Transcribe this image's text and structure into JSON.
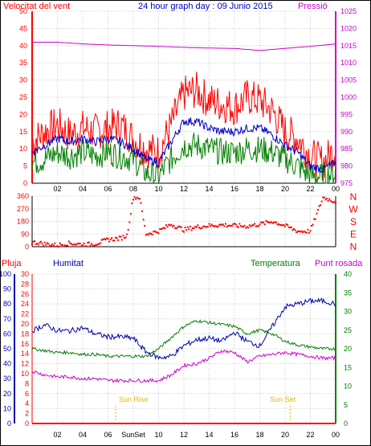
{
  "colors": {
    "wind_avg": "#0000cc",
    "wind_gust": "#ff0000",
    "wind_low": "#008000",
    "pressure": "#cc00cc",
    "direction": "#ff0000",
    "humidity": "#0000aa",
    "temperature": "#008000",
    "dewpoint": "#cc00cc",
    "rain": "#ff0000",
    "sun": "#ffcc00"
  },
  "chart_data": [
    {
      "type": "line",
      "title": "24 hour graph day : 09 Junio 2015",
      "left_label": "Velocitat del vent",
      "right_label": "Pressió",
      "x_ticks": [
        "02",
        "04",
        "06",
        "08",
        "10",
        "12",
        "14",
        "16",
        "18",
        "20",
        "22",
        "00"
      ],
      "y_left": {
        "ticks": [
          "0",
          "5",
          "10",
          "15",
          "20",
          "25",
          "30",
          "35",
          "40",
          "45",
          "50"
        ],
        "range": [
          0,
          50
        ]
      },
      "y_right": {
        "ticks": [
          "975",
          "980",
          "985",
          "990",
          "995",
          "1000",
          "1005",
          "1010",
          "1015",
          "1020",
          "1025"
        ],
        "range": [
          975,
          1025
        ]
      },
      "series": [
        {
          "name": "gust",
          "x": [
            0,
            1,
            2,
            3,
            4,
            5,
            6,
            7,
            8,
            9,
            10,
            11,
            12,
            13,
            14,
            15,
            16,
            17,
            18,
            19,
            20,
            21,
            22,
            23,
            24
          ],
          "values": [
            12,
            15,
            17,
            14,
            16,
            15,
            16,
            17,
            13,
            10,
            9,
            17,
            26,
            27,
            24,
            23,
            22,
            25,
            24,
            21,
            15,
            13,
            8,
            6,
            10
          ]
        },
        {
          "name": "average",
          "x": [
            0,
            1,
            2,
            3,
            4,
            5,
            6,
            7,
            8,
            9,
            10,
            11,
            12,
            13,
            14,
            15,
            16,
            17,
            18,
            19,
            20,
            21,
            22,
            23,
            24
          ],
          "values": [
            9,
            11,
            13,
            12,
            13,
            12,
            13,
            12,
            10,
            7,
            6,
            12,
            18,
            18,
            16,
            15,
            15,
            16,
            16,
            14,
            11,
            9,
            5,
            4,
            6
          ]
        },
        {
          "name": "low",
          "x": [
            0,
            1,
            2,
            3,
            4,
            5,
            6,
            7,
            8,
            9,
            10,
            11,
            12,
            13,
            14,
            15,
            16,
            17,
            18,
            19,
            20,
            21,
            22,
            23,
            24
          ],
          "values": [
            6,
            7,
            9,
            8,
            9,
            8,
            9,
            8,
            7,
            3,
            2,
            7,
            11,
            11,
            10,
            9,
            9,
            10,
            10,
            9,
            7,
            5,
            2,
            2,
            3
          ]
        },
        {
          "name": "pressure",
          "x": [
            0,
            2,
            4,
            6,
            8,
            10,
            12,
            14,
            16,
            18,
            20,
            22,
            24
          ],
          "values": [
            1016,
            1016,
            1015.5,
            1015.2,
            1015,
            1014.8,
            1014.5,
            1014.3,
            1014.2,
            1013.6,
            1014.2,
            1014.8,
            1015.5
          ]
        }
      ]
    },
    {
      "type": "scatter",
      "title": "",
      "y_ticks": [
        "360",
        "270",
        "180",
        "90",
        "0"
      ],
      "y_range": [
        0,
        360
      ],
      "right_letters": [
        "N",
        "W",
        "S",
        "E",
        "N"
      ],
      "series": [
        {
          "name": "direction",
          "x": [
            0.3,
            1,
            2,
            3,
            4,
            5,
            6,
            7,
            7.5,
            8,
            8.5,
            9,
            10,
            11,
            12,
            13,
            14,
            15,
            16,
            17,
            18,
            19,
            20,
            21,
            22,
            23,
            24
          ],
          "values": [
            30,
            20,
            10,
            25,
            15,
            20,
            50,
            60,
            80,
            350,
            350,
            90,
            110,
            160,
            120,
            140,
            150,
            155,
            150,
            145,
            160,
            180,
            150,
            110,
            110,
            350,
            320
          ]
        }
      ]
    },
    {
      "type": "line",
      "title": "",
      "labels": {
        "rain": "Pluja",
        "humidity": "Humitat",
        "temperature": "Temperatura",
        "dewpoint": "Punt rosada"
      },
      "y_humidity": {
        "ticks": [
          "0",
          "10",
          "20",
          "30",
          "40",
          "50",
          "60",
          "70",
          "80",
          "90",
          "100"
        ],
        "range": [
          0,
          100
        ]
      },
      "y_rain": {
        "ticks": [
          "0",
          "2",
          "4",
          "6",
          "8",
          "10",
          "12",
          "14",
          "16",
          "18",
          "20",
          "22",
          "24",
          "26",
          "28",
          "30"
        ],
        "range": [
          0,
          30
        ]
      },
      "y_temp": {
        "ticks": [
          "0",
          "5",
          "10",
          "15",
          "20",
          "25",
          "30",
          "35",
          "40"
        ],
        "range": [
          0,
          40
        ]
      },
      "x_ticks": [
        "02",
        "04",
        "06",
        "SunSet",
        "10",
        "12",
        "14",
        "16",
        "18",
        "20",
        "22",
        "00"
      ],
      "sun_rise": {
        "label": "Sun Rise",
        "hour": 6.6
      },
      "sun_set": {
        "label": "Sun Set",
        "hour": 20.4
      },
      "series": [
        {
          "name": "humidity",
          "x": [
            0,
            1,
            2,
            3,
            4,
            5,
            6,
            7,
            8,
            9,
            10,
            11,
            12,
            13,
            14,
            15,
            16,
            17,
            18,
            19,
            20,
            21,
            22,
            23,
            24
          ],
          "values": [
            62,
            66,
            62,
            62,
            64,
            60,
            58,
            58,
            57,
            48,
            44,
            45,
            52,
            56,
            57,
            55,
            61,
            55,
            52,
            65,
            78,
            80,
            82,
            82,
            80
          ]
        },
        {
          "name": "temperature",
          "x": [
            0,
            1,
            2,
            3,
            4,
            5,
            6,
            7,
            8,
            9,
            10,
            11,
            12,
            13,
            14,
            15,
            16,
            17,
            18,
            19,
            20,
            21,
            22,
            23,
            24
          ],
          "values": [
            20,
            19.5,
            19,
            19,
            18.5,
            18.5,
            18,
            18,
            18,
            18,
            20,
            23,
            26,
            27.5,
            27,
            26.5,
            26,
            24,
            25,
            24,
            22,
            21,
            20.5,
            20,
            20
          ]
        },
        {
          "name": "dewpoint",
          "x": [
            0,
            1,
            2,
            3,
            4,
            5,
            6,
            7,
            8,
            9,
            10,
            11,
            12,
            13,
            14,
            15,
            16,
            17,
            18,
            19,
            20,
            21,
            22,
            23,
            24
          ],
          "values": [
            14,
            13,
            12.5,
            12.5,
            12,
            12,
            11.5,
            11.5,
            11.5,
            11.5,
            11.5,
            13,
            15.5,
            16,
            17.5,
            19.5,
            19,
            16.5,
            18,
            18.5,
            19,
            18.5,
            18,
            17.5,
            17.5
          ]
        },
        {
          "name": "rain",
          "x": [
            0,
            24
          ],
          "values": [
            0,
            0
          ]
        }
      ]
    }
  ]
}
